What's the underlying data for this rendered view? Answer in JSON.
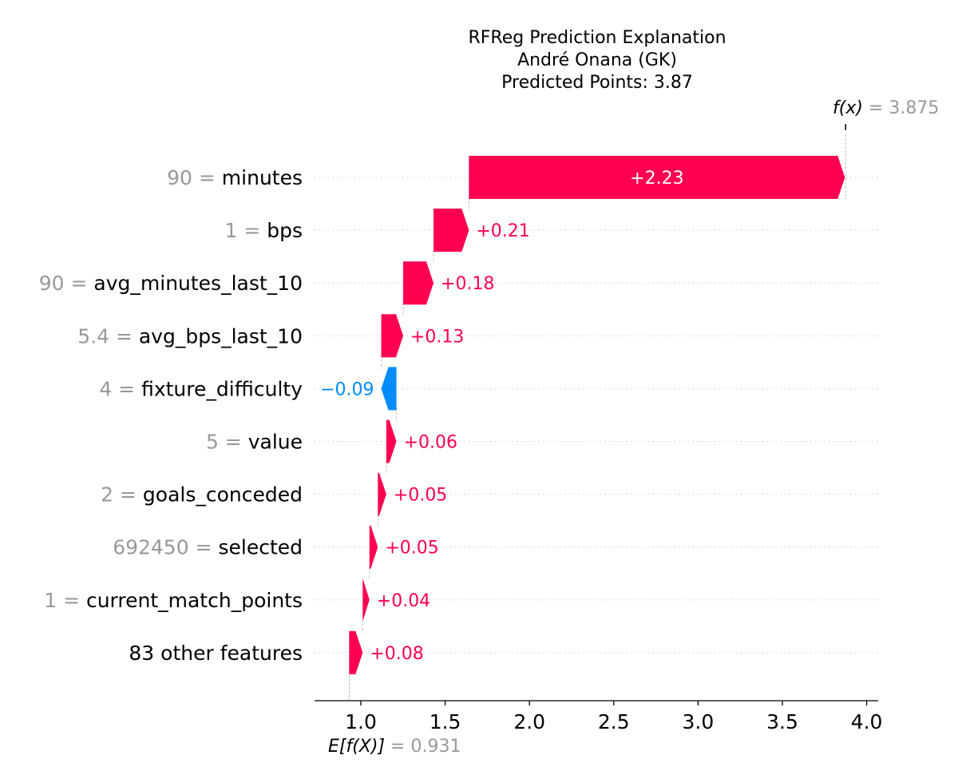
{
  "chart_data": {
    "type": "waterfall",
    "title_lines": [
      "RFReg Prediction Explanation",
      "André Onana (GK)",
      "Predicted Points: 3.87"
    ],
    "base_value": 0.931,
    "base_value_text": "0.931",
    "base_label": "E[f(X)]",
    "output_value": 3.875,
    "output_value_text": "3.875",
    "output_label": "f(x)",
    "xlim": [
      0.72,
      4.04
    ],
    "x_ticks": [
      1.0,
      1.5,
      2.0,
      2.5,
      3.0,
      3.5,
      4.0
    ],
    "x_tick_labels": [
      "1.0",
      "1.5",
      "2.0",
      "2.5",
      "3.0",
      "3.5",
      "4.0"
    ],
    "grid": "dotted-rows",
    "colors": {
      "positive": "#ff0051",
      "negative": "#008bfb",
      "muted": "#999999",
      "text": "#000000"
    },
    "features": [
      {
        "value": "90",
        "name": "minutes",
        "contribution": 2.23,
        "label": "+2.23"
      },
      {
        "value": "1",
        "name": "bps",
        "contribution": 0.21,
        "label": "+0.21"
      },
      {
        "value": "90",
        "name": "avg_minutes_last_10",
        "contribution": 0.18,
        "label": "+0.18"
      },
      {
        "value": "5.4",
        "name": "avg_bps_last_10",
        "contribution": 0.13,
        "label": "+0.13"
      },
      {
        "value": "4",
        "name": "fixture_difficulty",
        "contribution": -0.09,
        "label": "−0.09"
      },
      {
        "value": "5",
        "name": "value",
        "contribution": 0.06,
        "label": "+0.06"
      },
      {
        "value": "2",
        "name": "goals_conceded",
        "contribution": 0.05,
        "label": "+0.05"
      },
      {
        "value": "692450",
        "name": "selected",
        "contribution": 0.05,
        "label": "+0.05"
      },
      {
        "value": "1",
        "name": "current_match_points",
        "contribution": 0.04,
        "label": "+0.04"
      },
      {
        "value": "",
        "name": "83 other features",
        "contribution": 0.08,
        "label": "+0.08"
      }
    ]
  }
}
